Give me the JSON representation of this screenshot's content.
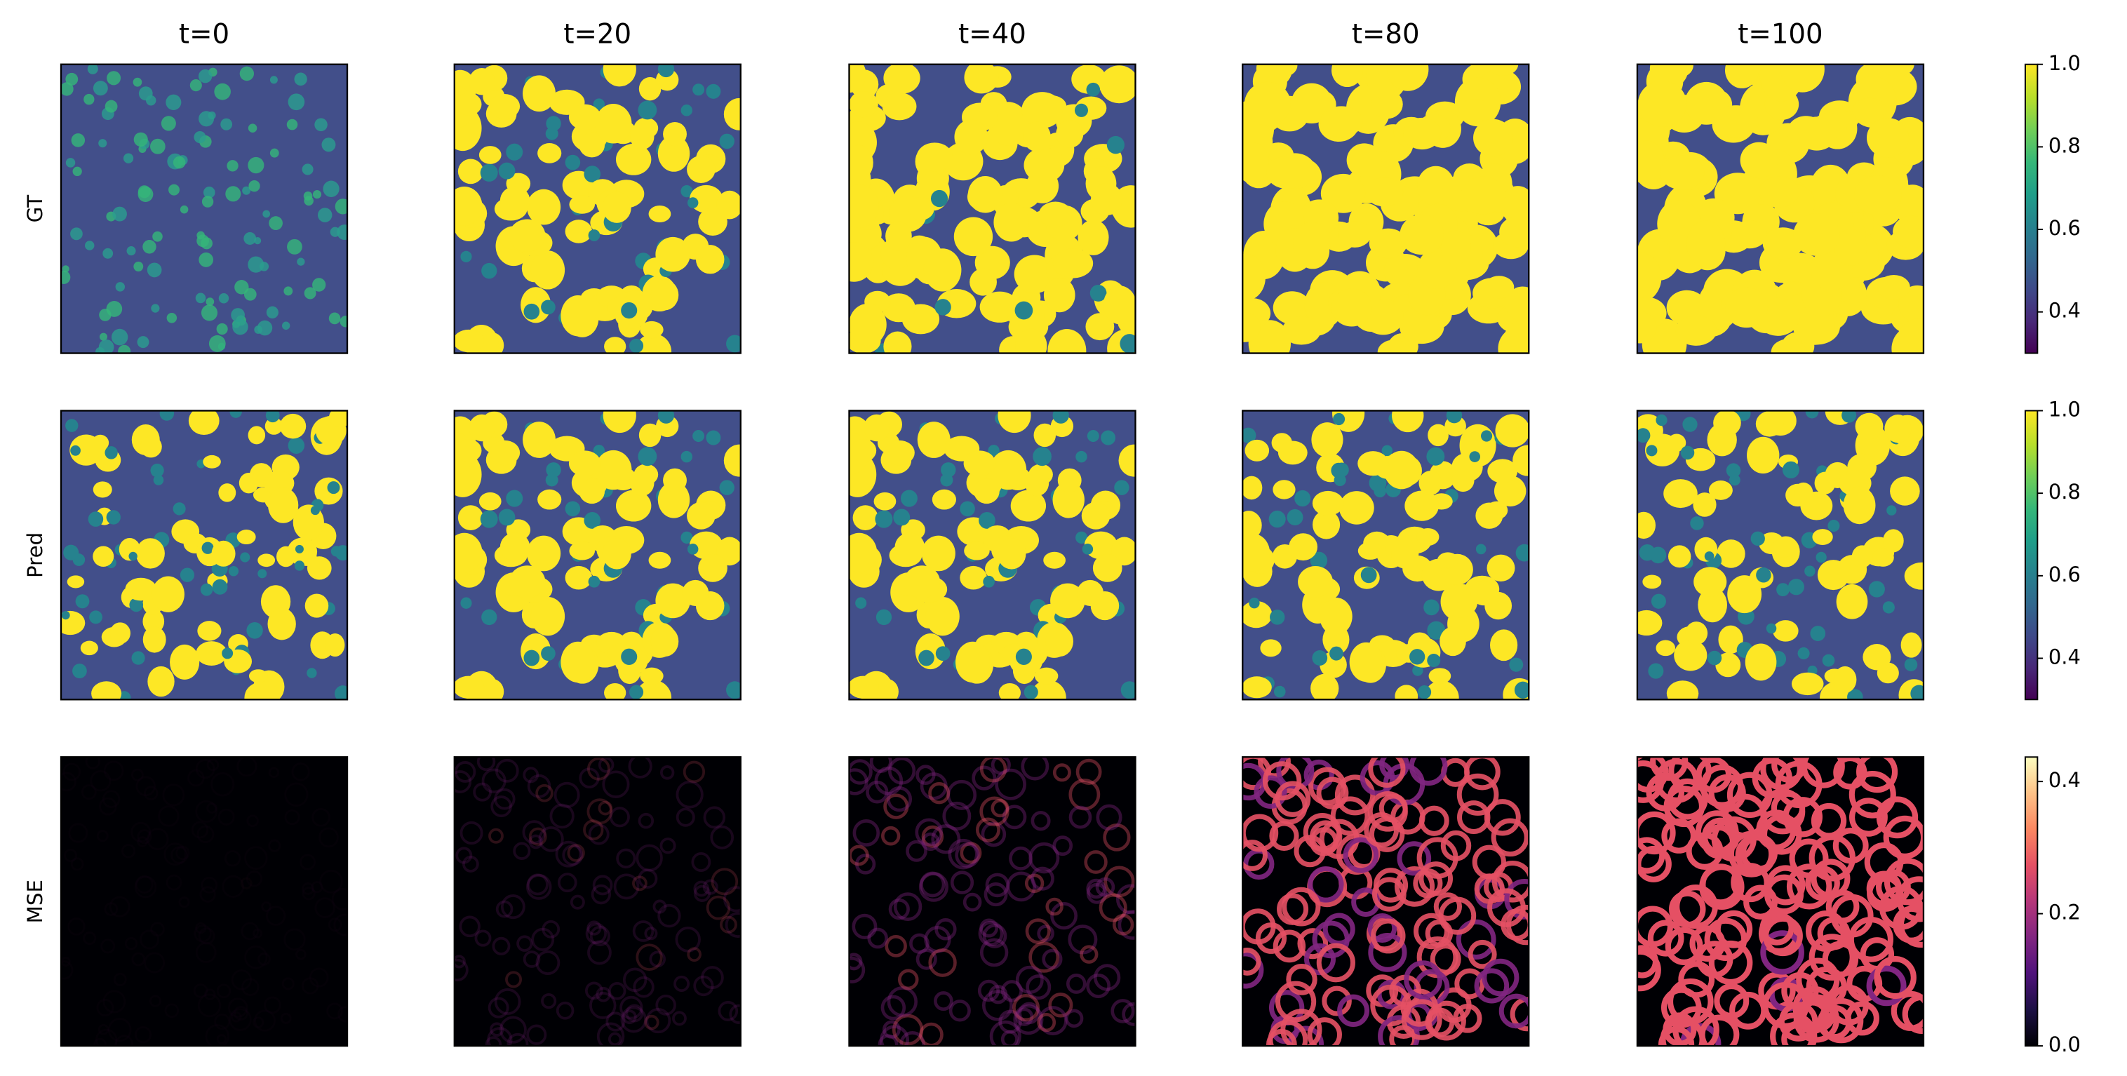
{
  "chart_data": {
    "type": "heatmap-grid",
    "columns": [
      "t=0",
      "t=20",
      "t=40",
      "t=80",
      "t=100"
    ],
    "rows": [
      {
        "label": "GT",
        "cmap": "viridis",
        "ylim": [
          0.3,
          1.0
        ],
        "yticks": [
          0.4,
          0.6,
          0.8,
          {
            "value": 1,
            "label": "1.0"
          }
        ]
      },
      {
        "label": "Pred",
        "cmap": "viridis",
        "ylim": [
          0.3,
          1.0
        ],
        "yticks": [
          0.4,
          0.6,
          0.8,
          {
            "value": 1,
            "label": "1.0"
          }
        ]
      },
      {
        "label": "MSE",
        "cmap": "magma",
        "ylim": [
          0,
          0.437
        ],
        "yticks": [
          {
            "value": 0,
            "label": "0.0"
          },
          0.2,
          0.4
        ]
      }
    ]
  }
}
